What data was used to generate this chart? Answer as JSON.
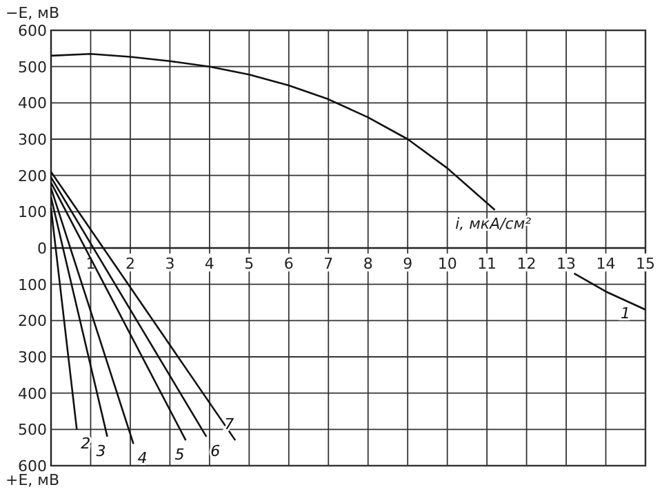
{
  "chart_data": {
    "type": "line",
    "ylabel": "−E, мВ",
    "xlabel": "i, мкА/см²",
    "annotations": [
      "+E, мВ"
    ],
    "xlim": [
      0,
      15
    ],
    "ylim": [
      -600,
      600
    ],
    "xticks": [
      1,
      2,
      3,
      4,
      5,
      6,
      7,
      8,
      9,
      10,
      11,
      12,
      13,
      14,
      15
    ],
    "yticks": [
      600,
      500,
      400,
      300,
      200,
      100,
      0,
      {
        "value": -100,
        "label": "100"
      },
      {
        "value": -200,
        "label": "200"
      },
      {
        "value": -300,
        "label": "300"
      },
      {
        "value": -400,
        "label": "400"
      },
      {
        "value": -500,
        "label": "500"
      },
      {
        "value": -600,
        "label": "600"
      }
    ],
    "grid": true,
    "marker": "none",
    "line_style": "solid",
    "series": [
      {
        "name": "1",
        "color": "#111111",
        "x": [
          0,
          1,
          2,
          3,
          4,
          5,
          6,
          7,
          8,
          9,
          10,
          11.2,
          12.2,
          13.2,
          14,
          15
        ],
        "values": [
          530,
          535,
          527,
          515,
          500,
          478,
          448,
          410,
          360,
          300,
          220,
          105,
          null,
          -70,
          -120,
          -170
        ]
      },
      {
        "name": "2",
        "color": "#111111",
        "x": [
          0,
          0.65
        ],
        "values": [
          110,
          -500
        ]
      },
      {
        "name": "3",
        "color": "#111111",
        "x": [
          0,
          1.42
        ],
        "values": [
          140,
          -520
        ]
      },
      {
        "name": "4",
        "color": "#111111",
        "x": [
          0,
          2.08
        ],
        "values": [
          165,
          -540
        ]
      },
      {
        "name": "5",
        "color": "#111111",
        "x": [
          0,
          3.4
        ],
        "values": [
          180,
          -530
        ]
      },
      {
        "name": "6",
        "color": "#111111",
        "x": [
          0,
          3.92
        ],
        "values": [
          195,
          -520
        ]
      },
      {
        "name": "7",
        "color": "#111111",
        "x": [
          0,
          4.65
        ],
        "values": [
          210,
          -530
        ]
      }
    ]
  }
}
